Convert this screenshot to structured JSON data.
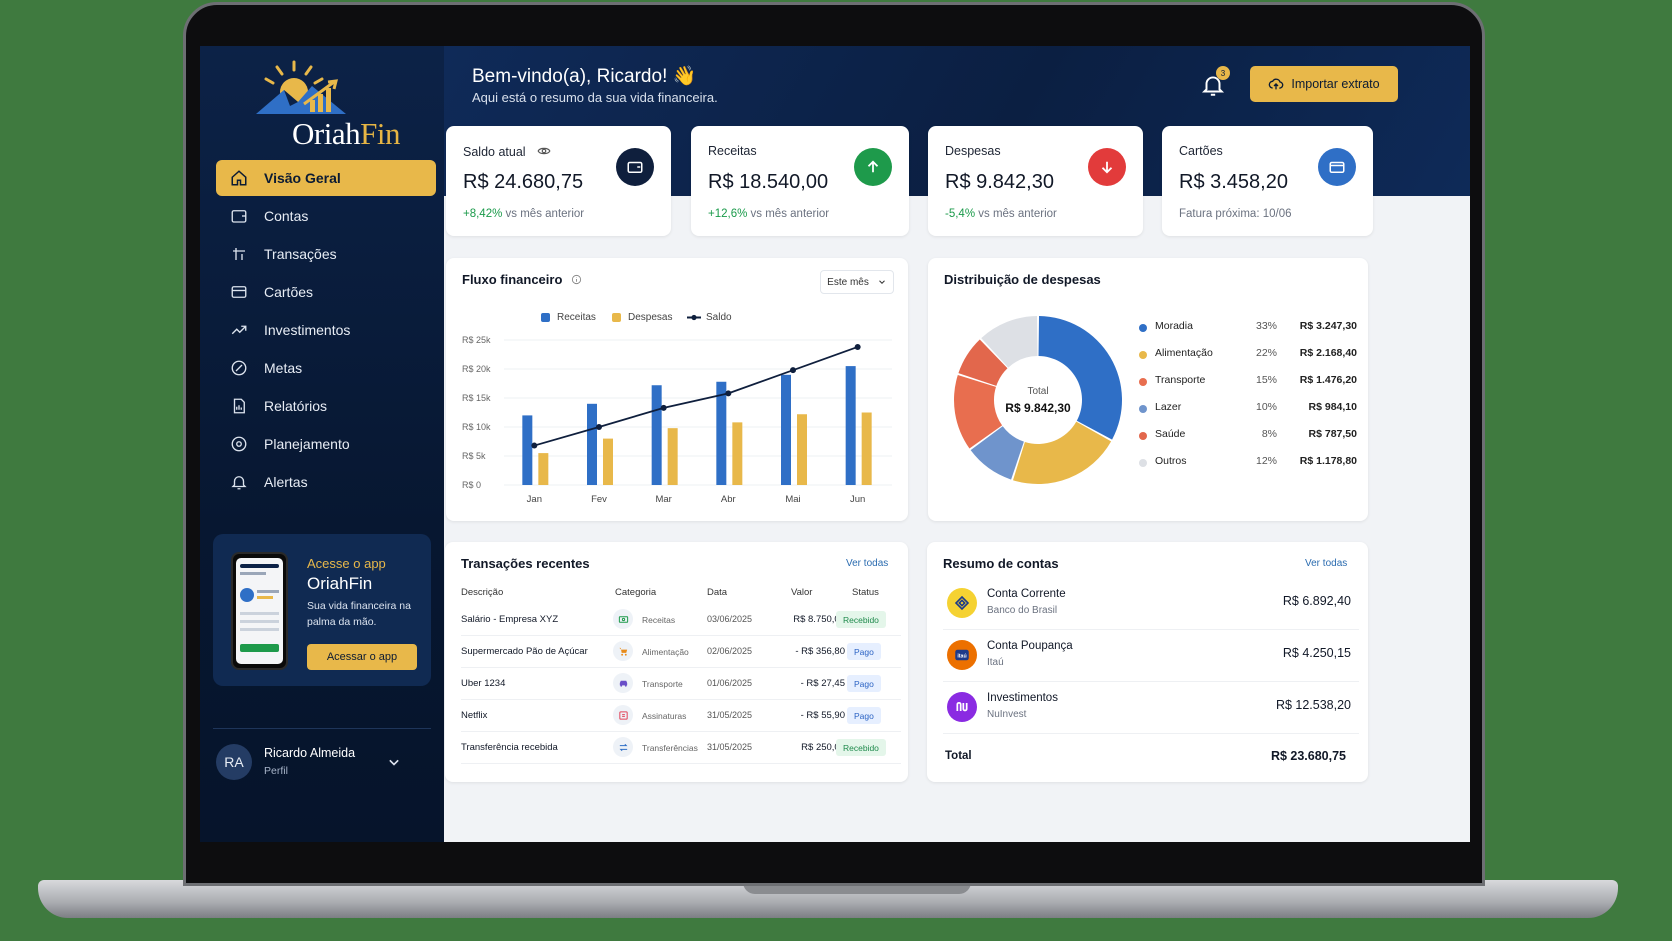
{
  "brand": {
    "name_main": "Oriah",
    "name_accent": "Fin"
  },
  "nav": [
    {
      "label": "Visão Geral",
      "icon": "home-icon",
      "active": true
    },
    {
      "label": "Contas",
      "icon": "wallet-icon"
    },
    {
      "label": "Transações",
      "icon": "transfer-icon"
    },
    {
      "label": "Cartões",
      "icon": "credit-card-icon"
    },
    {
      "label": "Investimentos",
      "icon": "trend-up-icon"
    },
    {
      "label": "Metas",
      "icon": "target-icon"
    },
    {
      "label": "Relatórios",
      "icon": "report-icon"
    },
    {
      "label": "Planejamento",
      "icon": "planning-icon"
    },
    {
      "label": "Alertas",
      "icon": "bell-icon"
    }
  ],
  "promo": {
    "line1": "Acesse o app",
    "line2": "OriahFin",
    "text": "Sua vida financeira na palma da mão.",
    "button": "Acessar o app"
  },
  "user": {
    "initials": "RA",
    "name": "Ricardo Almeida",
    "role": "Perfil"
  },
  "header": {
    "welcome": "Bem-vindo(a), Ricardo! 👋",
    "subtitle": "Aqui está o resumo da sua vida financeira.",
    "notification_count": "3",
    "import_button": "Importar extrato"
  },
  "stats": [
    {
      "label": "Saldo atual",
      "value": "R$ 24.680,75",
      "delta": "+8,42%",
      "delta_text": "vs mês anterior",
      "icon": "wallet-icon",
      "icon_bg": "#0f1f3d"
    },
    {
      "label": "Receitas",
      "value": "R$ 18.540,00",
      "delta": "+12,6%",
      "delta_text": "vs mês anterior",
      "icon": "arrow-up-icon",
      "icon_bg": "#1e9a4b"
    },
    {
      "label": "Despesas",
      "value": "R$ 9.842,30",
      "delta": "-5,4%",
      "delta_text": "vs mês anterior",
      "icon": "arrow-down-icon",
      "icon_bg": "#e23b3b"
    },
    {
      "label": "Cartões",
      "value": "R$ 3.458,20",
      "delta": "",
      "delta_text": "Fatura próxima: 10/06",
      "icon": "credit-card-icon",
      "icon_bg": "#2f6fc6"
    }
  ],
  "flow": {
    "title": "Fluxo financeiro",
    "period": "Este mês"
  },
  "chart_data": [
    {
      "type": "bar",
      "title": "Fluxo financeiro",
      "categories": [
        "Jan",
        "Fev",
        "Mar",
        "Abr",
        "Mai",
        "Jun"
      ],
      "series": [
        {
          "name": "Receitas",
          "type": "bar",
          "color": "#2f6fc6",
          "values": [
            12000,
            14000,
            17200,
            17800,
            19000,
            20500
          ]
        },
        {
          "name": "Despesas",
          "type": "bar",
          "color": "#e8b84a",
          "values": [
            5500,
            8000,
            9800,
            10800,
            12200,
            12500
          ]
        },
        {
          "name": "Saldo",
          "type": "line",
          "color": "#0f1f3d",
          "values": [
            6800,
            10000,
            13300,
            15800,
            19800,
            23800
          ]
        }
      ],
      "y_ticks": [
        "R$ 0",
        "R$ 5k",
        "R$ 10k",
        "R$ 15k",
        "R$ 20k",
        "R$ 25k"
      ],
      "ylim": [
        0,
        25000
      ],
      "legend_position": "top"
    },
    {
      "type": "pie",
      "title": "Distribuição de despesas",
      "center_label": "Total",
      "center_value": "R$ 9.842,30",
      "slices": [
        {
          "name": "Moradia",
          "pct": 33,
          "pct_label": "33%",
          "amount": "R$ 3.247,30",
          "color": "#2f6fc6"
        },
        {
          "name": "Alimentação",
          "pct": 22,
          "pct_label": "22%",
          "amount": "R$ 2.168,40",
          "color": "#e8b84a"
        },
        {
          "name": "Transporte",
          "pct": 15,
          "pct_label": "15%",
          "amount": "R$ 1.476,20",
          "color": "#e86e4f"
        },
        {
          "name": "Lazer",
          "pct": 10,
          "pct_label": "10%",
          "amount": "R$ 984,10",
          "color": "#6f94cc"
        },
        {
          "name": "Saúde",
          "pct": 8,
          "pct_label": "8%",
          "amount": "R$ 787,50",
          "color": "#e2674c"
        },
        {
          "name": "Outros",
          "pct": 12,
          "pct_label": "12%",
          "amount": "R$ 1.178,80",
          "color": "#dde0e5"
        }
      ],
      "draw_order": [
        0,
        1,
        3,
        2,
        4,
        5
      ]
    }
  ],
  "distribution": {
    "title": "Distribuição de despesas"
  },
  "transactions": {
    "title": "Transações recentes",
    "view_all": "Ver todas",
    "headers": [
      "Descrição",
      "Categoria",
      "Data",
      "Valor",
      "Status"
    ],
    "rows": [
      {
        "desc": "Salário - Empresa XYZ",
        "cat": "Receitas",
        "icon": "money-icon",
        "date": "03/06/2025",
        "value": "R$ 8.750,00",
        "status": "Recebido",
        "status_kind": "rec"
      },
      {
        "desc": "Supermercado Pão de Açúcar",
        "cat": "Alimentação",
        "icon": "cart-icon",
        "date": "02/06/2025",
        "value": "- R$ 356,80",
        "status": "Pago",
        "status_kind": "pago"
      },
      {
        "desc": "Uber 1234",
        "cat": "Transporte",
        "icon": "car-icon",
        "date": "01/06/2025",
        "value": "- R$ 27,45",
        "status": "Pago",
        "status_kind": "pago"
      },
      {
        "desc": "Netflix",
        "cat": "Assinaturas",
        "icon": "subscription-icon",
        "date": "31/05/2025",
        "value": "- R$ 55,90",
        "status": "Pago",
        "status_kind": "pago"
      },
      {
        "desc": "Transferência recebida",
        "cat": "Transferências",
        "icon": "transfer-icon",
        "date": "31/05/2025",
        "value": "R$ 250,00",
        "status": "Recebido",
        "status_kind": "rec"
      }
    ]
  },
  "accounts": {
    "title": "Resumo de contas",
    "view_all": "Ver todas",
    "items": [
      {
        "name": "Conta Corrente",
        "bank": "Banco do Brasil",
        "value": "R$ 6.892,40",
        "icon": "bank-bb-icon",
        "color": "#f5d232"
      },
      {
        "name": "Conta Poupança",
        "bank": "Itaú",
        "value": "R$ 4.250,15",
        "icon": "bank-itau-icon",
        "color": "#ec7000"
      },
      {
        "name": "Investimentos",
        "bank": "NuInvest",
        "value": "R$ 12.538,20",
        "icon": "bank-nu-icon",
        "color": "#8a2be2"
      }
    ],
    "total_label": "Total",
    "total_value": "R$ 23.680,75"
  }
}
